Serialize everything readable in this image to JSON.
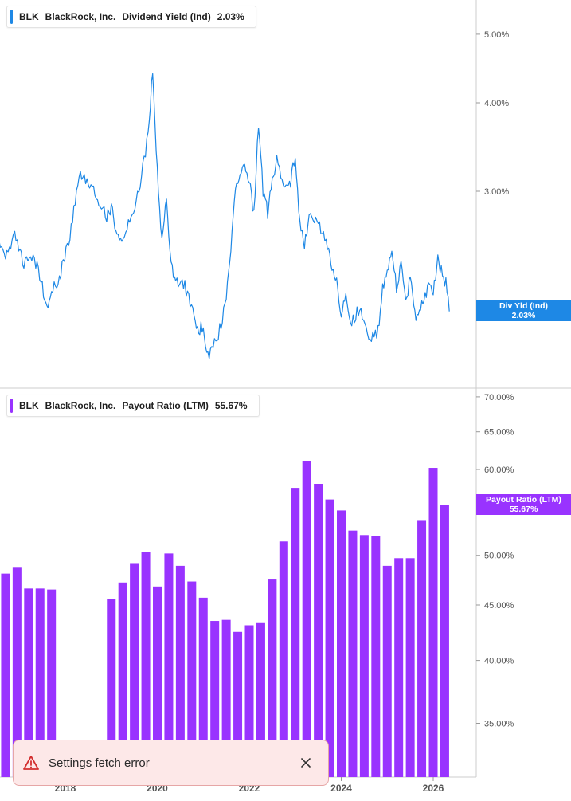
{
  "colors": {
    "yield_line": "#1e88e5",
    "payout_bar": "#9933ff",
    "grid": "#e0e0e0",
    "axis_text": "#555555"
  },
  "legends": {
    "top": {
      "ticker": "BLK",
      "company": "BlackRock, Inc.",
      "metric": "Dividend Yield (Ind)",
      "value": "2.03%"
    },
    "bottom": {
      "ticker": "BLK",
      "company": "BlackRock, Inc.",
      "metric": "Payout Ratio (LTM)",
      "value": "55.67%"
    }
  },
  "tags": {
    "top": {
      "label": "Div Yld (Ind)",
      "value": "2.03%"
    },
    "bottom": {
      "label": "Payout Ratio (LTM)",
      "value": "55.67%"
    }
  },
  "toast": {
    "message": "Settings fetch error",
    "icon": "warning-icon",
    "close_icon": "close-icon"
  },
  "chart_data": [
    {
      "type": "line",
      "series": [
        {
          "name": "Dividend Yield (Ind)",
          "x": [
            2016.5,
            2016.7,
            2016.9,
            2017.1,
            2017.3,
            2017.5,
            2017.6,
            2017.7,
            2017.9,
            2018.1,
            2018.3,
            2018.5,
            2018.7,
            2018.9,
            2019.0,
            2019.1,
            2019.2,
            2019.4,
            2019.6,
            2019.8,
            2019.9,
            2020.0,
            2020.05,
            2020.1,
            2020.2,
            2020.3,
            2020.4,
            2020.6,
            2020.8,
            2020.9,
            2021.0,
            2021.1,
            2021.3,
            2021.5,
            2021.6,
            2021.7,
            2021.8,
            2021.9,
            2022.0,
            2022.1,
            2022.2,
            2022.3,
            2022.4,
            2022.5,
            2022.6,
            2022.8,
            2022.9,
            2023.0,
            2023.1,
            2023.2,
            2023.3,
            2023.5,
            2023.7,
            2023.8,
            2023.9,
            2024.0,
            2024.1,
            2024.2,
            2024.4,
            2024.6,
            2024.8,
            2024.9,
            2025.0,
            2025.1,
            2025.2,
            2025.3,
            2025.4,
            2025.5,
            2025.6,
            2025.7,
            2025.8,
            2025.9,
            2026.0,
            2026.1,
            2026.2,
            2026.3,
            2026.35
          ],
          "values": [
            2.55,
            2.45,
            2.6,
            2.35,
            2.45,
            2.2,
            2.05,
            2.15,
            2.3,
            2.6,
            3.2,
            3.1,
            2.95,
            2.75,
            2.85,
            2.65,
            2.55,
            2.75,
            3.0,
            3.6,
            4.45,
            3.2,
            2.8,
            2.6,
            2.9,
            2.35,
            2.25,
            2.2,
            2.0,
            1.9,
            1.95,
            1.75,
            1.85,
            2.1,
            2.5,
            3.0,
            3.2,
            3.3,
            3.1,
            2.8,
            3.7,
            3.0,
            2.8,
            3.1,
            3.3,
            3.0,
            3.1,
            3.4,
            2.7,
            2.5,
            2.75,
            2.7,
            2.5,
            2.35,
            2.25,
            2.0,
            2.15,
            1.95,
            2.05,
            1.85,
            1.9,
            2.2,
            2.3,
            2.5,
            2.2,
            2.35,
            2.1,
            2.25,
            2.0,
            2.03,
            2.1,
            2.2,
            2.15,
            2.4,
            2.3,
            2.2,
            2.03
          ]
        }
      ],
      "yticks": [
        5.0,
        4.0,
        3.0
      ],
      "ytick_labels": [
        "5.00%",
        "4.00%",
        "3.00%"
      ]
    },
    {
      "type": "bar",
      "series": [
        {
          "name": "Payout Ratio (LTM)",
          "x": [
            2016.7,
            2016.95,
            2017.2,
            2017.45,
            2017.7,
            2019.0,
            2019.25,
            2019.5,
            2019.75,
            2020.0,
            2020.25,
            2020.5,
            2020.75,
            2021.0,
            2021.25,
            2021.5,
            2021.75,
            2022.0,
            2022.25,
            2022.5,
            2022.75,
            2023.0,
            2023.25,
            2023.5,
            2023.75,
            2024.0,
            2024.25,
            2024.5,
            2024.75,
            2025.0,
            2025.25,
            2025.5,
            2025.75,
            2026.0,
            2026.25
          ],
          "values": [
            48.1,
            48.7,
            46.6,
            46.6,
            46.5,
            45.6,
            47.2,
            49.1,
            50.4,
            46.8,
            50.2,
            48.9,
            47.3,
            45.7,
            43.5,
            43.6,
            42.5,
            43.1,
            43.3,
            47.5,
            51.5,
            57.7,
            61.1,
            58.2,
            56.3,
            55.0,
            52.7,
            52.2,
            52.1,
            48.9,
            49.7,
            49.7,
            53.8,
            60.2,
            55.67
          ]
        }
      ],
      "yticks": [
        70.0,
        65.0,
        60.0,
        50.0,
        45.0,
        40.0,
        35.0
      ],
      "ytick_labels": [
        "70.00%",
        "65.00%",
        "60.00%",
        "50.00%",
        "45.00%",
        "40.00%",
        "35.00%"
      ]
    }
  ],
  "x_axis": {
    "ticks": [
      2018,
      2020,
      2022,
      2024,
      2026
    ],
    "labels": [
      "2018",
      "2020",
      "2022",
      "2024",
      "2026"
    ]
  }
}
